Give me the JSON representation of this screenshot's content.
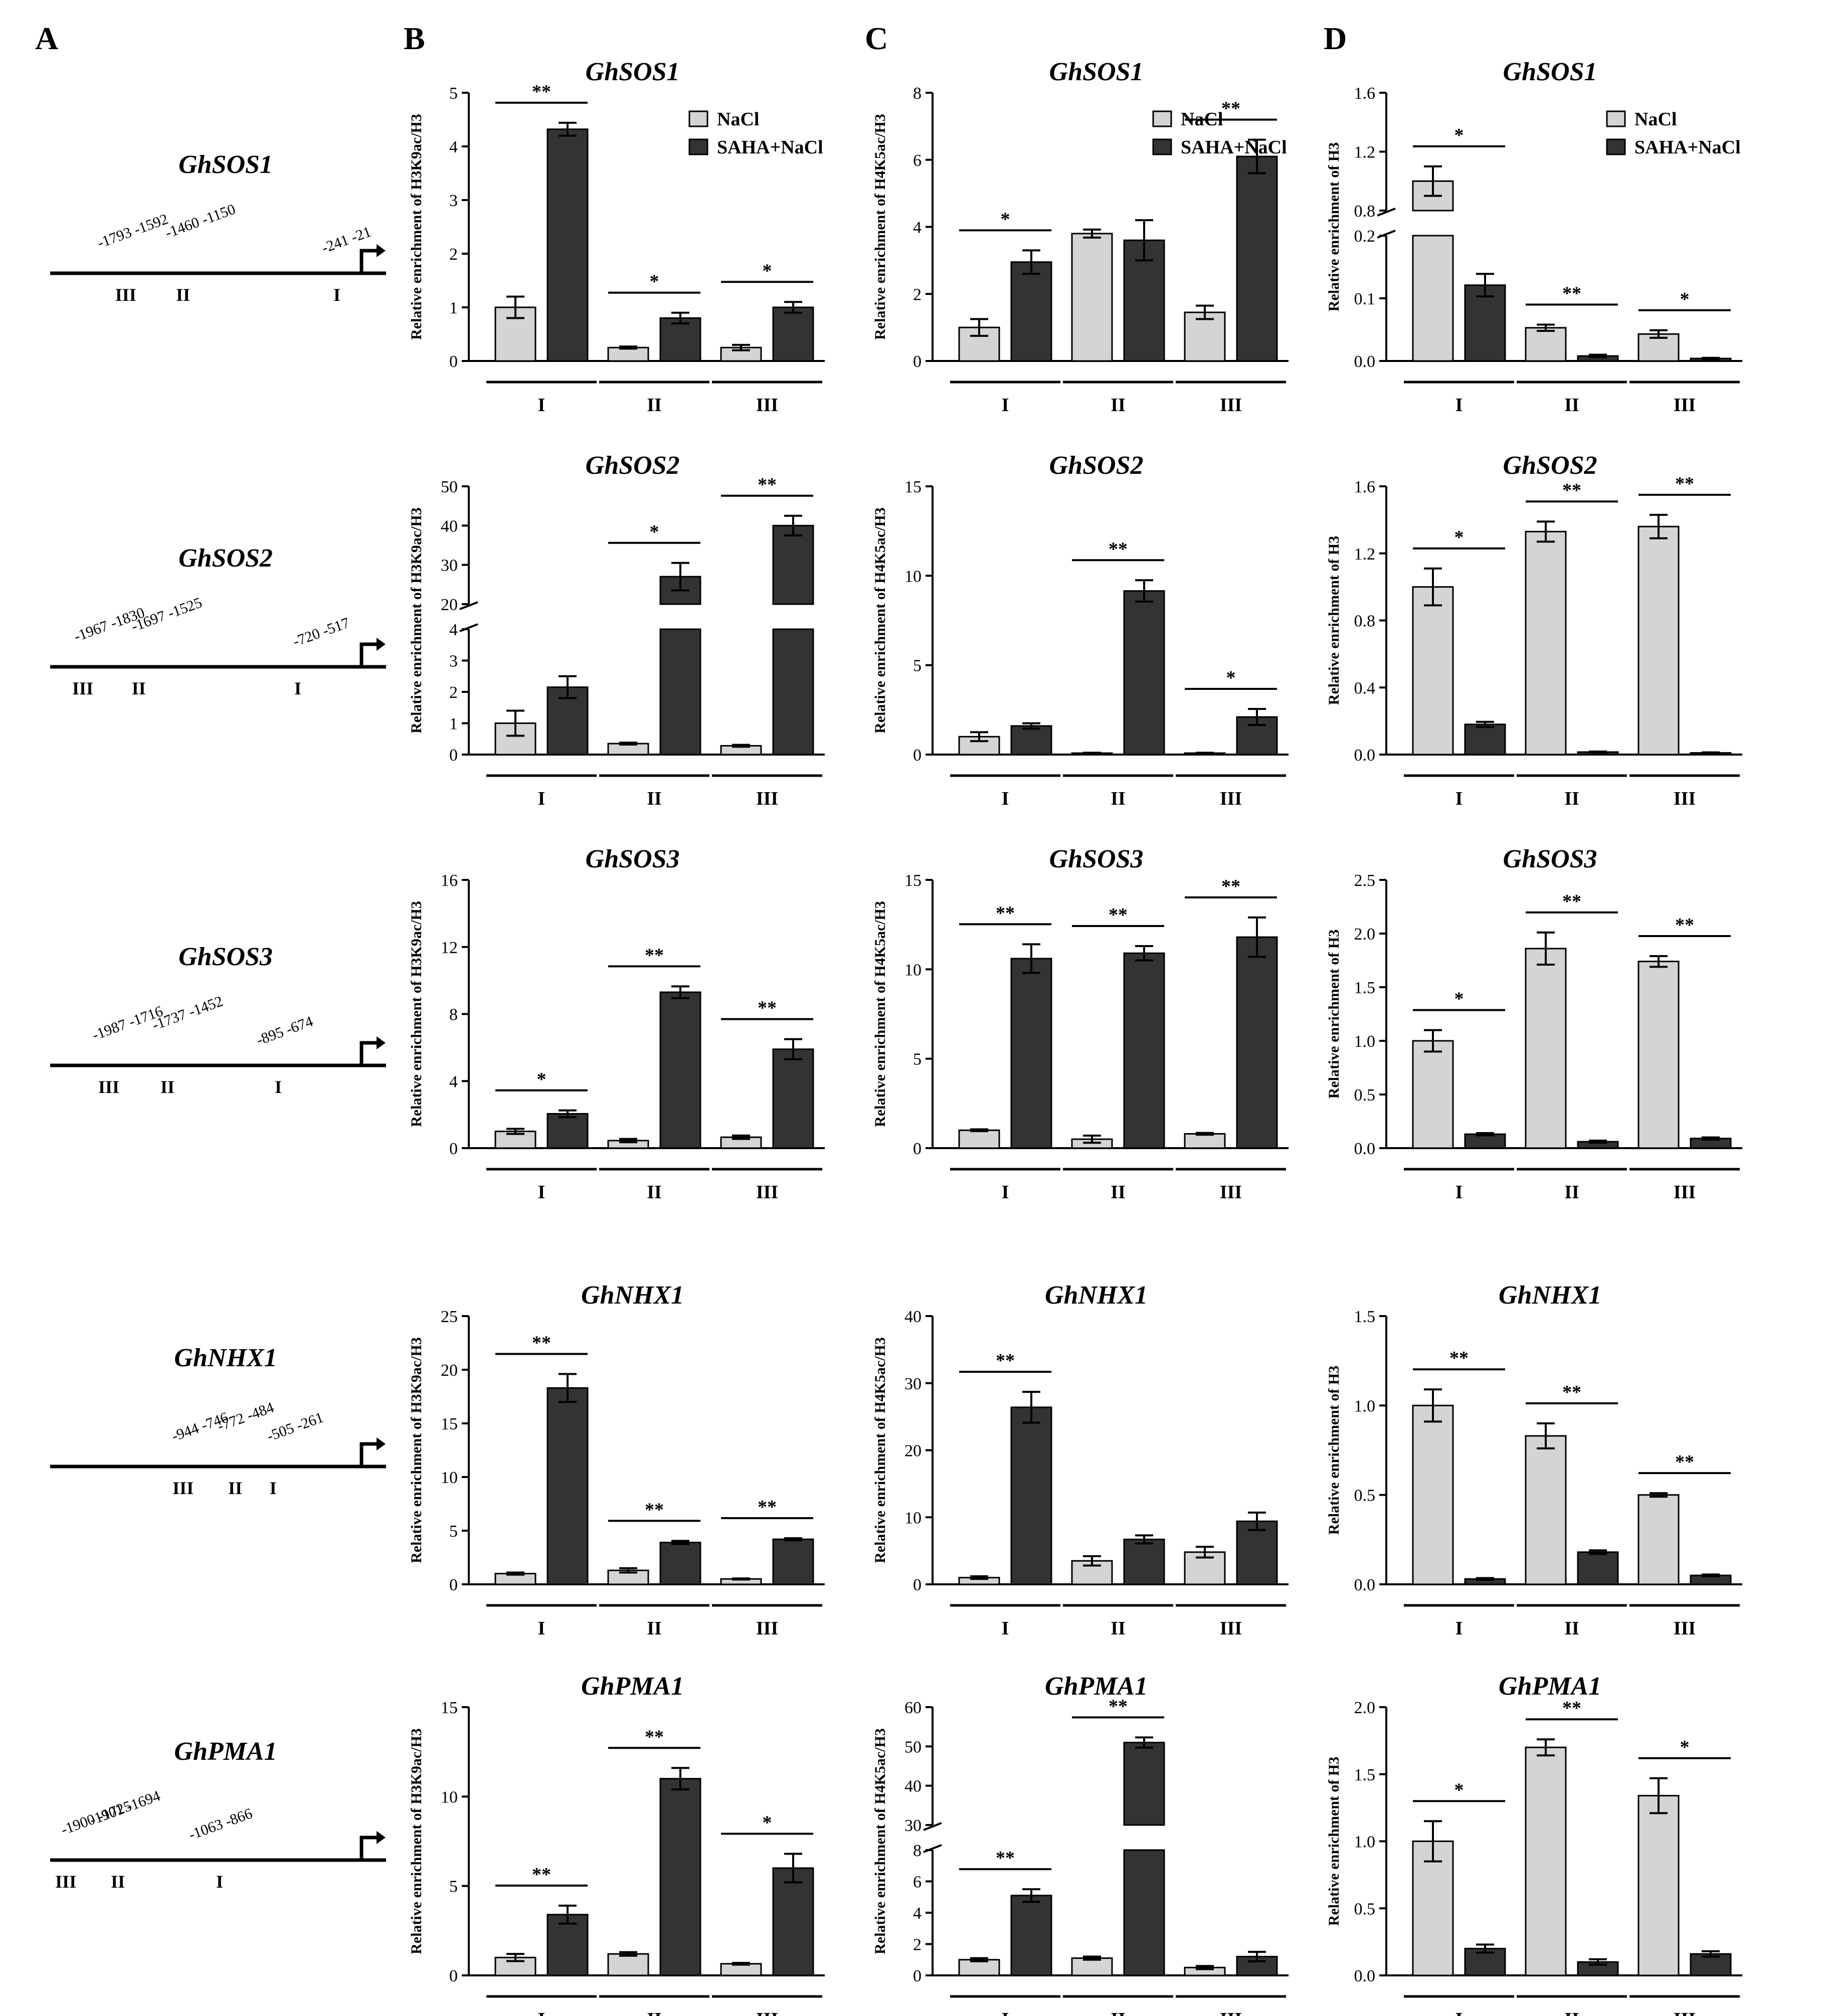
{
  "panel_letters": [
    "A",
    "B",
    "C",
    "D"
  ],
  "legend": {
    "nacl": "NaCl",
    "saha": "SAHA+NaCl"
  },
  "colors": {
    "nacl": "#d4d4d4",
    "saha": "#333333",
    "line": "#000000"
  },
  "diagrams": [
    {
      "gene": "GhSOS1",
      "labels": [
        {
          "text": "-1793 -1592",
          "x": 38,
          "y": 25
        },
        {
          "text": "-1460 -1150",
          "x": 90,
          "y": 45
        },
        {
          "text": "-241 -21",
          "x": 210,
          "y": 15
        }
      ],
      "regions": [
        {
          "text": "III",
          "x": 58
        },
        {
          "text": "II",
          "x": 102
        },
        {
          "text": "I",
          "x": 220
        }
      ],
      "arrow": 235
    },
    {
      "gene": "GhSOS2",
      "labels": [
        {
          "text": "-1967 -1830",
          "x": 20,
          "y": 25
        },
        {
          "text": "-1697 -1525",
          "x": 64,
          "y": 45
        },
        {
          "text": "-720 -517",
          "x": 188,
          "y": 15
        }
      ],
      "regions": [
        {
          "text": "III",
          "x": 25
        },
        {
          "text": "II",
          "x": 68
        },
        {
          "text": "I",
          "x": 190
        }
      ],
      "arrow": 235
    },
    {
      "gene": "GhSOS3",
      "labels": [
        {
          "text": "-1987 -1716",
          "x": 34,
          "y": 25
        },
        {
          "text": "-1737 -1452",
          "x": 80,
          "y": 45
        },
        {
          "text": "-895 -674",
          "x": 160,
          "y": 15
        }
      ],
      "regions": [
        {
          "text": "III",
          "x": 45
        },
        {
          "text": "II",
          "x": 90
        },
        {
          "text": "I",
          "x": 175
        }
      ],
      "arrow": 235
    },
    {
      "gene": "GhNHX1",
      "labels": [
        {
          "text": "-944 -746",
          "x": 95,
          "y": 25
        },
        {
          "text": "-772 -484",
          "x": 130,
          "y": 45
        },
        {
          "text": "-505 -261",
          "x": 168,
          "y": 25
        }
      ],
      "regions": [
        {
          "text": "III",
          "x": 102
        },
        {
          "text": "II",
          "x": 142
        },
        {
          "text": "I",
          "x": 171
        }
      ],
      "arrow": 235
    },
    {
      "gene": "GhPMA1",
      "labels": [
        {
          "text": "-1900 -1725",
          "x": 10,
          "y": 25
        },
        {
          "text": "-1901 -1694",
          "x": 32,
          "y": 45
        },
        {
          "text": "-1063 -866",
          "x": 108,
          "y": 15
        }
      ],
      "regions": [
        {
          "text": "III",
          "x": 12
        },
        {
          "text": "II",
          "x": 52
        },
        {
          "text": "I",
          "x": 130
        }
      ],
      "arrow": 235
    }
  ],
  "chart_data": [
    {
      "col": "B",
      "row": 0,
      "title": "GhSOS1",
      "ylabel": "Relative enrichment of H3K9ac/H3",
      "type": "bar",
      "categories": [
        "I",
        "II",
        "III"
      ],
      "ylim": [
        0,
        5
      ],
      "ticks": [
        "0",
        "1",
        "2",
        "3",
        "4",
        "5"
      ],
      "legend": true,
      "series": [
        {
          "name": "NaCl",
          "values": [
            1.0,
            0.25,
            0.25
          ],
          "errors": [
            0.2,
            0.02,
            0.05
          ]
        },
        {
          "name": "SAHA+NaCl",
          "values": [
            4.32,
            0.8,
            1.0
          ],
          "errors": [
            0.12,
            0.1,
            0.1
          ]
        }
      ],
      "sig": [
        "**",
        "*",
        "*"
      ]
    },
    {
      "col": "C",
      "row": 0,
      "title": "GhSOS1",
      "ylabel": "Relative enrichment of H4K5ac/H3",
      "type": "bar",
      "categories": [
        "I",
        "II",
        "III"
      ],
      "ylim": [
        0,
        8
      ],
      "ticks": [
        "0",
        "2",
        "4",
        "6",
        "8"
      ],
      "legend": true,
      "series": [
        {
          "name": "NaCl",
          "values": [
            1.0,
            3.8,
            1.45
          ],
          "errors": [
            0.25,
            0.12,
            0.2
          ]
        },
        {
          "name": "SAHA+NaCl",
          "values": [
            2.95,
            3.6,
            6.1
          ],
          "errors": [
            0.35,
            0.6,
            0.5
          ]
        }
      ],
      "sig": [
        "*",
        "",
        "**"
      ]
    },
    {
      "col": "D",
      "row": 0,
      "title": "GhSOS1",
      "ylabel": "Relative enrichment of H3",
      "type": "bar",
      "categories": [
        "I",
        "II",
        "III"
      ],
      "legend": true,
      "break": {
        "lower": [
          0,
          0.2
        ],
        "upper": [
          0.8,
          1.6
        ],
        "lowerTicks": [
          "0.0",
          "0.1",
          "0.2"
        ],
        "upperTicks": [
          "0.8",
          "1.2",
          "1.6"
        ]
      },
      "series": [
        {
          "name": "NaCl",
          "values": [
            1.0,
            0.053,
            0.043
          ],
          "errors": [
            0.1,
            0.005,
            0.006
          ]
        },
        {
          "name": "SAHA+NaCl",
          "values": [
            0.121,
            0.008,
            0.004
          ],
          "errors": [
            0.018,
            0.002,
            0.001
          ]
        }
      ],
      "sig": [
        "*",
        "**",
        "*"
      ]
    },
    {
      "col": "B",
      "row": 1,
      "title": "GhSOS2",
      "ylabel": "Relative enrichment of H3K9ac/H3",
      "type": "bar",
      "categories": [
        "I",
        "II",
        "III"
      ],
      "break": {
        "lower": [
          0,
          4
        ],
        "upper": [
          20,
          50
        ],
        "lowerTicks": [
          "0",
          "1",
          "2",
          "3",
          "4"
        ],
        "upperTicks": [
          "20",
          "30",
          "40",
          "50"
        ]
      },
      "series": [
        {
          "name": "NaCl",
          "values": [
            1.0,
            0.35,
            0.28
          ],
          "errors": [
            0.4,
            0.03,
            0.03
          ]
        },
        {
          "name": "SAHA+NaCl",
          "values": [
            2.15,
            27.0,
            40.0
          ],
          "errors": [
            0.35,
            3.5,
            2.5
          ]
        }
      ],
      "sig": [
        "",
        "*",
        "**"
      ]
    },
    {
      "col": "C",
      "row": 1,
      "title": "GhSOS2",
      "ylabel": "Relative enrichment of H4K5ac/H3",
      "type": "bar",
      "categories": [
        "I",
        "II",
        "III"
      ],
      "ylim": [
        0,
        15
      ],
      "ticks": [
        "0",
        "5",
        "10",
        "15"
      ],
      "series": [
        {
          "name": "NaCl",
          "values": [
            1.0,
            0.08,
            0.08
          ],
          "errors": [
            0.25,
            0.02,
            0.02
          ]
        },
        {
          "name": "SAHA+NaCl",
          "values": [
            1.6,
            9.15,
            2.1
          ],
          "errors": [
            0.15,
            0.6,
            0.45
          ]
        }
      ],
      "sig": [
        "",
        "**",
        "*"
      ]
    },
    {
      "col": "D",
      "row": 1,
      "title": "GhSOS2",
      "ylabel": "Relative enrichment of H3",
      "type": "bar",
      "categories": [
        "I",
        "II",
        "III"
      ],
      "ylim": [
        0,
        1.6
      ],
      "ticks": [
        "0.0",
        "0.4",
        "0.8",
        "1.2",
        "1.6"
      ],
      "series": [
        {
          "name": "NaCl",
          "values": [
            1.0,
            1.33,
            1.36
          ],
          "errors": [
            0.11,
            0.06,
            0.07
          ]
        },
        {
          "name": "SAHA+NaCl",
          "values": [
            0.18,
            0.015,
            0.01
          ],
          "errors": [
            0.015,
            0.003,
            0.003
          ]
        }
      ],
      "sig": [
        "*",
        "**",
        "**"
      ]
    },
    {
      "col": "B",
      "row": 2,
      "title": "GhSOS3",
      "ylabel": "Relative enrichment of H3K9ac/H3",
      "type": "bar",
      "categories": [
        "I",
        "II",
        "III"
      ],
      "ylim": [
        0,
        16
      ],
      "ticks": [
        "0",
        "4",
        "8",
        "12",
        "16"
      ],
      "series": [
        {
          "name": "NaCl",
          "values": [
            1.0,
            0.45,
            0.65
          ],
          "errors": [
            0.15,
            0.1,
            0.1
          ]
        },
        {
          "name": "SAHA+NaCl",
          "values": [
            2.05,
            9.3,
            5.9
          ],
          "errors": [
            0.2,
            0.35,
            0.6
          ]
        }
      ],
      "sig": [
        "*",
        "**",
        "**"
      ]
    },
    {
      "col": "C",
      "row": 2,
      "title": "GhSOS3",
      "ylabel": "Relative enrichment of H4K5ac/H3",
      "type": "bar",
      "categories": [
        "I",
        "II",
        "III"
      ],
      "ylim": [
        0,
        15
      ],
      "ticks": [
        "0",
        "5",
        "10",
        "15"
      ],
      "series": [
        {
          "name": "NaCl",
          "values": [
            1.0,
            0.5,
            0.8
          ],
          "errors": [
            0.05,
            0.2,
            0.05
          ]
        },
        {
          "name": "SAHA+NaCl",
          "values": [
            10.6,
            10.9,
            11.8
          ],
          "errors": [
            0.8,
            0.4,
            1.1
          ]
        }
      ],
      "sig": [
        "**",
        "**",
        "**"
      ]
    },
    {
      "col": "D",
      "row": 2,
      "title": "GhSOS3",
      "ylabel": "Relative enrichment of H3",
      "type": "bar",
      "categories": [
        "I",
        "II",
        "III"
      ],
      "ylim": [
        0,
        2.5
      ],
      "ticks": [
        "0.0",
        "0.5",
        "1.0",
        "1.5",
        "2.0",
        "2.5"
      ],
      "series": [
        {
          "name": "NaCl",
          "values": [
            1.0,
            1.86,
            1.74
          ],
          "errors": [
            0.1,
            0.15,
            0.05
          ]
        },
        {
          "name": "SAHA+NaCl",
          "values": [
            0.13,
            0.06,
            0.09
          ],
          "errors": [
            0.01,
            0.01,
            0.01
          ]
        }
      ],
      "sig": [
        "*",
        "**",
        "**"
      ]
    },
    {
      "col": "B",
      "row": 3,
      "title": "GhNHX1",
      "ylabel": "Relative enrichment of H3K9ac/H3",
      "type": "bar",
      "categories": [
        "I",
        "II",
        "III"
      ],
      "ylim": [
        0,
        25
      ],
      "ticks": [
        "0",
        "5",
        "10",
        "15",
        "20",
        "25"
      ],
      "series": [
        {
          "name": "NaCl",
          "values": [
            1.0,
            1.3,
            0.5
          ],
          "errors": [
            0.1,
            0.2,
            0.05
          ]
        },
        {
          "name": "SAHA+NaCl",
          "values": [
            18.3,
            3.9,
            4.2
          ],
          "errors": [
            1.3,
            0.15,
            0.1
          ]
        }
      ],
      "sig": [
        "**",
        "**",
        "**"
      ]
    },
    {
      "col": "C",
      "row": 3,
      "title": "GhNHX1",
      "ylabel": "Relative enrichment of H4K5ac/H3",
      "type": "bar",
      "categories": [
        "I",
        "II",
        "III"
      ],
      "ylim": [
        0,
        40
      ],
      "ticks": [
        "0",
        "10",
        "20",
        "30",
        "40"
      ],
      "series": [
        {
          "name": "NaCl",
          "values": [
            1.0,
            3.5,
            4.8
          ],
          "errors": [
            0.2,
            0.7,
            0.8
          ]
        },
        {
          "name": "SAHA+NaCl",
          "values": [
            26.4,
            6.7,
            9.4
          ],
          "errors": [
            2.3,
            0.6,
            1.3
          ]
        }
      ],
      "sig": [
        "**",
        "",
        ""
      ]
    },
    {
      "col": "D",
      "row": 3,
      "title": "GhNHX1",
      "ylabel": "Relative enrichment of H3",
      "type": "bar",
      "categories": [
        "I",
        "II",
        "III"
      ],
      "ylim": [
        0,
        1.5
      ],
      "ticks": [
        "0.0",
        "0.5",
        "1.0",
        "1.5"
      ],
      "series": [
        {
          "name": "NaCl",
          "values": [
            1.0,
            0.83,
            0.5
          ],
          "errors": [
            0.09,
            0.07,
            0.01
          ]
        },
        {
          "name": "SAHA+NaCl",
          "values": [
            0.03,
            0.18,
            0.05
          ],
          "errors": [
            0.005,
            0.01,
            0.005
          ]
        }
      ],
      "sig": [
        "**",
        "**",
        "**"
      ]
    },
    {
      "col": "B",
      "row": 4,
      "title": "GhPMA1",
      "ylabel": "Relative enrichment of H3K9ac/H3",
      "type": "bar",
      "categories": [
        "I",
        "II",
        "III"
      ],
      "ylim": [
        0,
        15
      ],
      "ticks": [
        "0",
        "5",
        "10",
        "15"
      ],
      "series": [
        {
          "name": "NaCl",
          "values": [
            1.0,
            1.2,
            0.65
          ],
          "errors": [
            0.2,
            0.1,
            0.05
          ]
        },
        {
          "name": "SAHA+NaCl",
          "values": [
            3.4,
            11.0,
            6.0
          ],
          "errors": [
            0.5,
            0.6,
            0.8
          ]
        }
      ],
      "sig": [
        "**",
        "**",
        "*"
      ]
    },
    {
      "col": "C",
      "row": 4,
      "title": "GhPMA1",
      "ylabel": "Relative enrichment of H4K5ac/H3",
      "type": "bar",
      "categories": [
        "I",
        "II",
        "III"
      ],
      "break": {
        "lower": [
          0,
          8
        ],
        "upper": [
          30,
          60
        ],
        "lowerTicks": [
          "0",
          "2",
          "4",
          "6",
          "8"
        ],
        "upperTicks": [
          "30",
          "40",
          "50",
          "60"
        ]
      },
      "series": [
        {
          "name": "NaCl",
          "values": [
            1.0,
            1.1,
            0.5
          ],
          "errors": [
            0.1,
            0.1,
            0.1
          ]
        },
        {
          "name": "SAHA+NaCl",
          "values": [
            5.1,
            51.0,
            1.2
          ],
          "errors": [
            0.4,
            1.3,
            0.3
          ]
        }
      ],
      "sig": [
        "**",
        "**",
        ""
      ]
    },
    {
      "col": "D",
      "row": 4,
      "title": "GhPMA1",
      "ylabel": "Relative enrichment of H3",
      "type": "bar",
      "categories": [
        "I",
        "II",
        "III"
      ],
      "ylim": [
        0,
        2.0
      ],
      "ticks": [
        "0.0",
        "0.5",
        "1.0",
        "1.5",
        "2.0"
      ],
      "series": [
        {
          "name": "NaCl",
          "values": [
            1.0,
            1.7,
            1.34
          ],
          "errors": [
            0.15,
            0.06,
            0.13
          ]
        },
        {
          "name": "SAHA+NaCl",
          "values": [
            0.2,
            0.1,
            0.16
          ],
          "errors": [
            0.03,
            0.02,
            0.02
          ]
        }
      ],
      "sig": [
        "*",
        "**",
        "*"
      ]
    }
  ]
}
